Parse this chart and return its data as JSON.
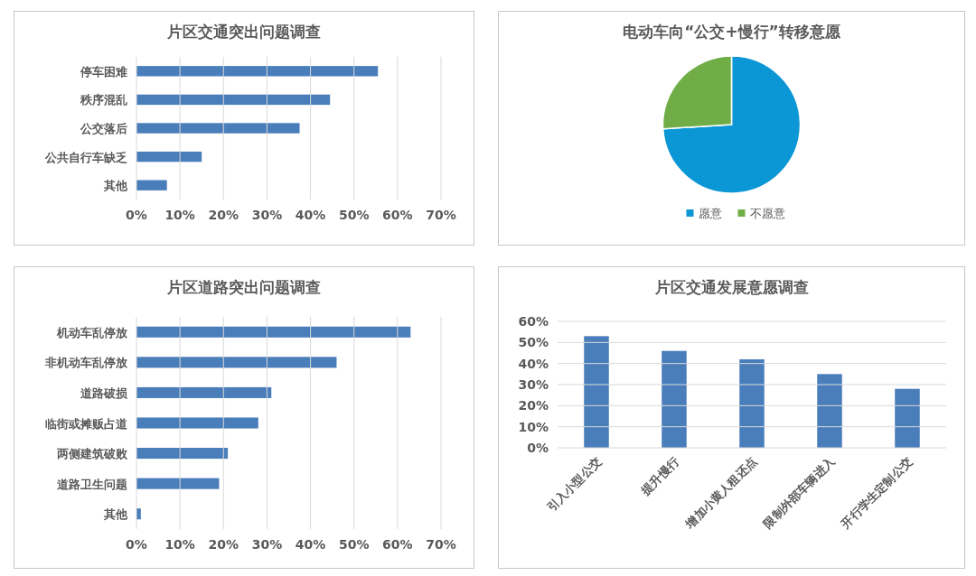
{
  "chart_data": [
    {
      "type": "bar",
      "orientation": "horizontal",
      "title": "片区交通突出问题调查",
      "categories": [
        "停车困难",
        "秩序混乱",
        "公交落后",
        "公共自行车缺乏",
        "其他"
      ],
      "values": [
        55.5,
        44.5,
        37.5,
        15,
        7
      ],
      "color": "#4a7ebb",
      "xlim": [
        0,
        70
      ],
      "xticks": [
        {
          "value": 0,
          "label": "0%"
        },
        {
          "value": 10,
          "label": "10%"
        },
        {
          "value": 20,
          "label": "20%"
        },
        {
          "value": 30,
          "label": "30%"
        },
        {
          "value": 40,
          "label": "40%"
        },
        {
          "value": 50,
          "label": "50%"
        },
        {
          "value": 60,
          "label": "60%"
        },
        {
          "value": 70,
          "label": "70%"
        }
      ],
      "grid": "x"
    },
    {
      "type": "pie",
      "title": "电动车向“公交+慢行”转移意愿",
      "categories": [
        "愿意",
        "不愿意"
      ],
      "values": [
        74,
        26
      ],
      "colors": [
        "#0b96d6",
        "#70ad47"
      ],
      "legend": "bottom"
    },
    {
      "type": "bar",
      "orientation": "horizontal",
      "title": "片区道路突出问题调查",
      "categories": [
        "机动车乱停放",
        "非机动车乱停放",
        "道路破损",
        "临街或摊贩占道",
        "两侧建筑破败",
        "道路卫生问题",
        "其他"
      ],
      "values": [
        63,
        46,
        31,
        28,
        21,
        19,
        1
      ],
      "color": "#4a7ebb",
      "xlim": [
        0,
        70
      ],
      "xticks": [
        {
          "value": 0,
          "label": "0%"
        },
        {
          "value": 10,
          "label": "10%"
        },
        {
          "value": 20,
          "label": "20%"
        },
        {
          "value": 30,
          "label": "30%"
        },
        {
          "value": 40,
          "label": "40%"
        },
        {
          "value": 50,
          "label": "50%"
        },
        {
          "value": 60,
          "label": "60%"
        },
        {
          "value": 70,
          "label": "70%"
        }
      ],
      "grid": "x"
    },
    {
      "type": "bar",
      "title": "片区交通发展意愿调查",
      "categories": [
        "引入小型公交",
        "提升慢行",
        "增加小黄人租还点",
        "限制外部车辆进入",
        "开行学生定制公交"
      ],
      "values": [
        53,
        46,
        42,
        35,
        28
      ],
      "color": "#4a7ebb",
      "ylim": [
        0,
        60
      ],
      "yticks": [
        {
          "value": 0,
          "label": "0%"
        },
        {
          "value": 10,
          "label": "10%"
        },
        {
          "value": 20,
          "label": "20%"
        },
        {
          "value": 30,
          "label": "30%"
        },
        {
          "value": 40,
          "label": "40%"
        },
        {
          "value": 50,
          "label": "50%"
        },
        {
          "value": 60,
          "label": "60%"
        }
      ],
      "grid": "y"
    }
  ]
}
